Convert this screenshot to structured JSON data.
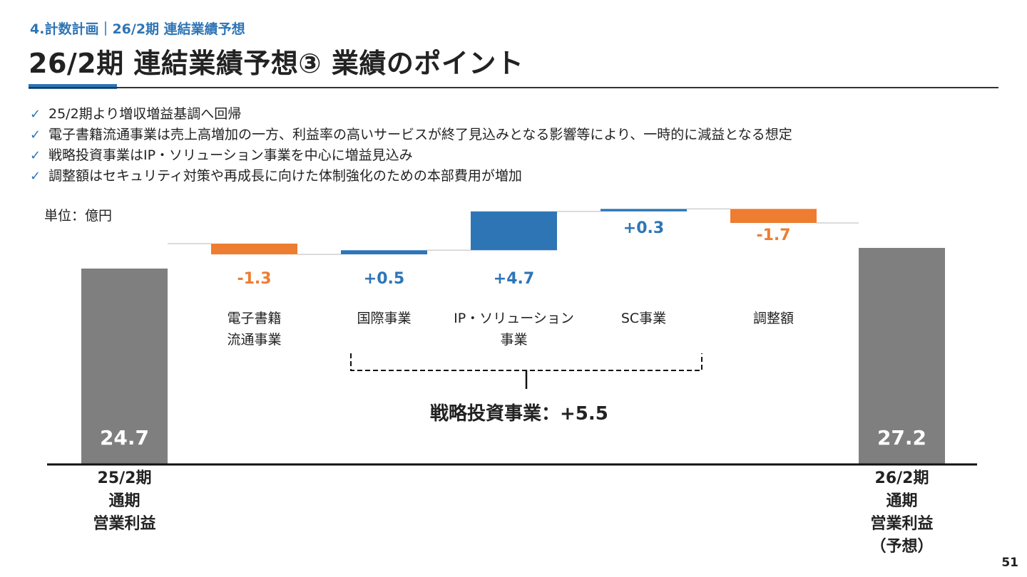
{
  "header": {
    "breadcrumb": "4.計数計画｜26/2期 連結業績予想",
    "title": "26/2期 連結業績予想③ 業績のポイント"
  },
  "bullets": [
    "25/2期より増収増益基調へ回帰",
    "電子書籍流通事業は売上高増加の一方、利益率の高いサービスが終了見込みとなる影響等により、一時的に減益となる想定",
    "戦略投資事業はIP・ソリューション事業を中心に増益見込み",
    "調整額はセキュリティ対策や再成長に向けた体制強化のための本部費用が増加"
  ],
  "unit_label": "単位：億円",
  "strategic_summary": "戦略投資事業：+5.5",
  "page_number": "51",
  "colors": {
    "accent": "#2e75b6",
    "increase": "#2e75b6",
    "decrease": "#ed7d31",
    "total": "#7f7f7f"
  },
  "chart_data": {
    "type": "waterfall",
    "start": {
      "label_lines": [
        "25/2期",
        "通期",
        "営業利益"
      ],
      "value": 24.7,
      "value_label": "24.7"
    },
    "steps": [
      {
        "label_lines": [
          "電子書籍",
          "流通事業"
        ],
        "delta": -1.3,
        "value_label": "-1.3"
      },
      {
        "label_lines": [
          "国際事業"
        ],
        "delta": 0.5,
        "value_label": "+0.5"
      },
      {
        "label_lines": [
          "IP・ソリューション",
          "事業"
        ],
        "delta": 4.7,
        "value_label": "+4.7"
      },
      {
        "label_lines": [
          "SC事業"
        ],
        "delta": 0.3,
        "value_label": "+0.3"
      },
      {
        "label_lines": [
          "調整額"
        ],
        "delta": -1.7,
        "value_label": "-1.7"
      }
    ],
    "end": {
      "label_lines": [
        "26/2期",
        "通期",
        "営業利益",
        "（予想）"
      ],
      "value": 27.2,
      "value_label": "27.2"
    }
  }
}
